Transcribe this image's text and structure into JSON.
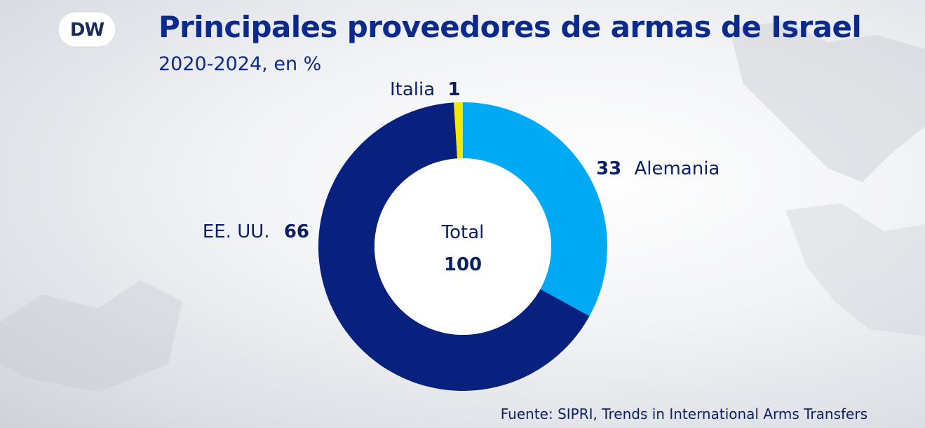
{
  "brand": {
    "logo_text": "DW"
  },
  "title": "Principales proveedores de armas de Israel",
  "subtitle": "2020-2024, en %",
  "source": "Fuente: SIPRI, Trends in International Arms Transfers",
  "colors": {
    "title": "#0b2a8c",
    "label": "#0b1f66",
    "usa": "#08207e",
    "germany": "#00a9f4",
    "italy": "#f5e800"
  },
  "chart_data": {
    "type": "pie",
    "donut": true,
    "center_label": "Total",
    "center_value": "100",
    "slices": [
      {
        "label": "Alemania",
        "value": 33
      },
      {
        "label": "EE. UU.",
        "value": 66
      },
      {
        "label": "Italia",
        "value": 1
      }
    ]
  }
}
